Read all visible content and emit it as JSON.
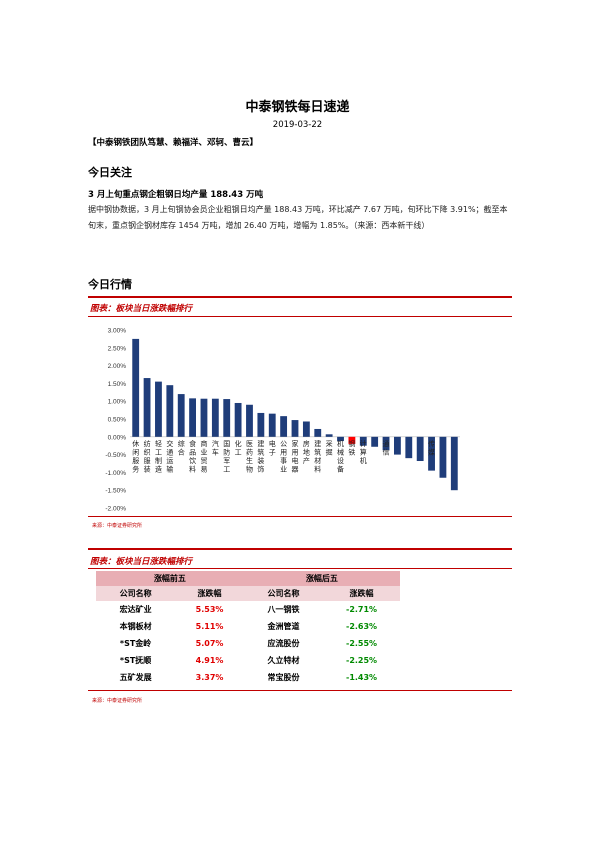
{
  "title": "中泰钢铁每日速递",
  "date": "2019-03-22",
  "authors": "【中泰钢铁团队笃慧、赖福洋、邓轲、曹云】",
  "focus": {
    "heading": "今日关注",
    "headline": "3 月上旬重点钢企粗钢日均产量 188.43 万吨",
    "body": "据中钢协数据，3 月上旬钢协会员企业粗钢日均产量 188.43 万吨，环比减产 7.67 万吨，旬环比下降 3.91%；截至本旬末，重点钢企钢材库存 1454 万吨，增加 26.40 万吨，增幅为 1.85%。（来源：西本新干线）"
  },
  "market": {
    "heading": "今日行情"
  },
  "figure1": {
    "title": "图表：板块当日涨跌幅排行",
    "source": "来源：中泰证券研究所"
  },
  "figure2": {
    "title": "图表：板块当日涨跌幅排行",
    "source": "来源：中泰证券研究所"
  },
  "chart_data": {
    "type": "bar",
    "categories": [
      "休闲服务",
      "纺织服装",
      "轻工制造",
      "交通运输",
      "综合",
      "食品饮料",
      "商业贸易",
      "汽车",
      "国防军工",
      "化工",
      "医药生物",
      "建筑装饰",
      "电子",
      "公用事业",
      "家用电器",
      "房地产",
      "建筑材料",
      "采掘",
      "机械设备",
      "钢铁",
      "计算机",
      "",
      "通信",
      "",
      "",
      "",
      "传媒",
      "",
      ""
    ],
    "values": [
      2.75,
      1.65,
      1.55,
      1.45,
      1.2,
      1.08,
      1.07,
      1.07,
      1.06,
      0.95,
      0.9,
      0.67,
      0.65,
      0.58,
      0.47,
      0.43,
      0.22,
      0.07,
      -0.12,
      -0.2,
      -0.25,
      -0.28,
      -0.38,
      -0.5,
      -0.6,
      -0.68,
      -0.95,
      -1.15,
      -1.5
    ],
    "highlight_index": 19,
    "ylim": [
      -2.0,
      3.0
    ],
    "yticks": [
      "3.00%",
      "2.50%",
      "2.00%",
      "1.50%",
      "1.00%",
      "0.50%",
      "0.00%",
      "-0.50%",
      "-1.00%",
      "-1.50%",
      "-2.00%"
    ],
    "bar_color": "#1f3d7a",
    "highlight_color": "#ff0000"
  },
  "table": {
    "group_up": "涨幅前五",
    "group_down": "涨幅后五",
    "col_name": "公司名称",
    "col_change": "涨跌幅",
    "rows": [
      {
        "up_name": "宏达矿业",
        "up_change": "5.53%",
        "down_name": "八一钢铁",
        "down_change": "-2.71%"
      },
      {
        "up_name": "本钢板材",
        "up_change": "5.11%",
        "down_name": "金洲管道",
        "down_change": "-2.63%"
      },
      {
        "up_name": "*ST金岭",
        "up_change": "5.07%",
        "down_name": "应流股份",
        "down_change": "-2.55%"
      },
      {
        "up_name": "*ST抚顺",
        "up_change": "4.91%",
        "down_name": "久立特材",
        "down_change": "-2.25%"
      },
      {
        "up_name": "五矿发展",
        "up_change": "3.37%",
        "down_name": "常宝股份",
        "down_change": "-1.43%"
      }
    ]
  }
}
